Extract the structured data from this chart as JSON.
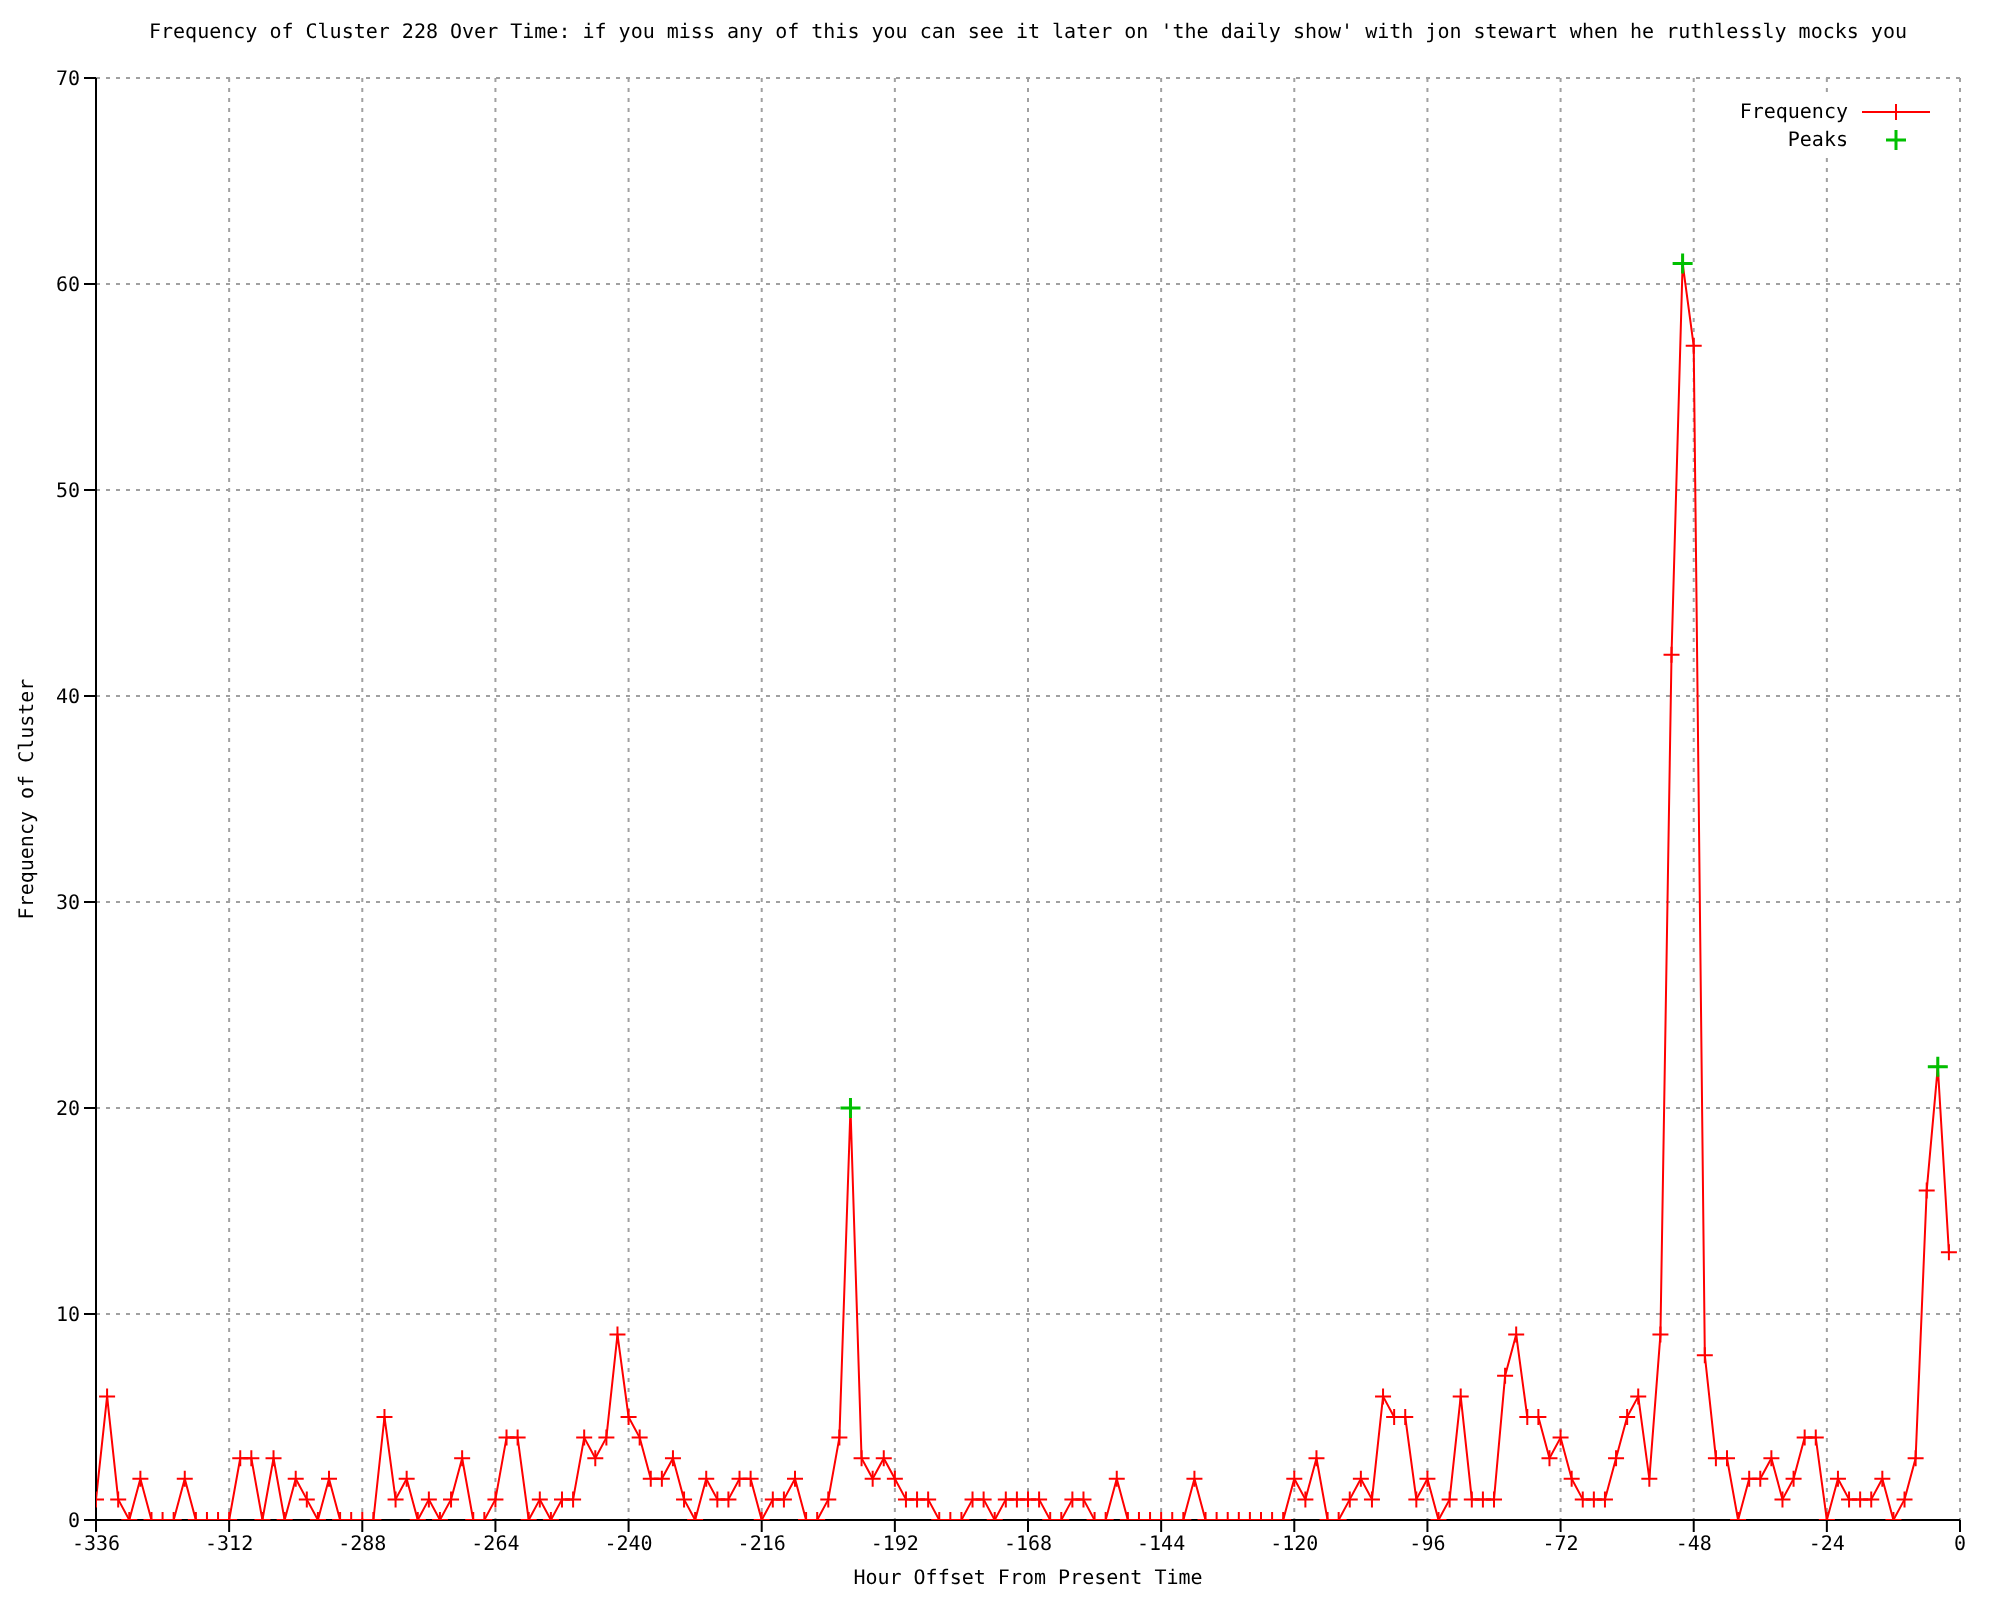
{
  "chart_data": {
    "type": "line",
    "title": "Frequency of Cluster 228 Over Time: if you miss any of this you can see it later on 'the daily show' with jon stewart when he ruthlessly mocks you",
    "xlabel": "Hour Offset From Present Time",
    "ylabel": "Frequency of Cluster",
    "x": [
      -336,
      -334,
      -332,
      -330,
      -328,
      -326,
      -324,
      -322,
      -320,
      -318,
      -316,
      -314,
      -312,
      -310,
      -308,
      -306,
      -304,
      -302,
      -300,
      -298,
      -296,
      -294,
      -292,
      -290,
      -288,
      -286,
      -284,
      -282,
      -280,
      -278,
      -276,
      -274,
      -272,
      -270,
      -268,
      -266,
      -264,
      -262,
      -260,
      -258,
      -256,
      -254,
      -252,
      -250,
      -248,
      -246,
      -244,
      -242,
      -240,
      -238,
      -236,
      -234,
      -232,
      -230,
      -228,
      -226,
      -224,
      -222,
      -220,
      -218,
      -216,
      -214,
      -212,
      -210,
      -208,
      -206,
      -204,
      -202,
      -200,
      -198,
      -196,
      -194,
      -192,
      -190,
      -188,
      -186,
      -184,
      -182,
      -180,
      -178,
      -176,
      -174,
      -172,
      -170,
      -168,
      -166,
      -164,
      -162,
      -160,
      -158,
      -156,
      -154,
      -152,
      -150,
      -148,
      -146,
      -144,
      -142,
      -140,
      -138,
      -136,
      -134,
      -132,
      -130,
      -128,
      -126,
      -124,
      -122,
      -120,
      -118,
      -116,
      -114,
      -112,
      -110,
      -108,
      -106,
      -104,
      -102,
      -100,
      -98,
      -96,
      -94,
      -92,
      -90,
      -88,
      -86,
      -84,
      -82,
      -80,
      -78,
      -76,
      -74,
      -72,
      -70,
      -68,
      -66,
      -64,
      -62,
      -60,
      -58,
      -56,
      -54,
      -52,
      -50,
      -48,
      -46,
      -44,
      -42,
      -40,
      -38,
      -36,
      -34,
      -32,
      -30,
      -28,
      -26,
      -24,
      -22,
      -20,
      -18,
      -16,
      -14,
      -12,
      -10,
      -8,
      -6,
      -4,
      -2
    ],
    "series": [
      {
        "name": "Frequency",
        "color": "#ff0000",
        "marker": "cross",
        "values": [
          1,
          6,
          1,
          0,
          2,
          0,
          0,
          0,
          2,
          0,
          0,
          0,
          0,
          3,
          3,
          0,
          3,
          0,
          2,
          1,
          0,
          2,
          0,
          0,
          0,
          0,
          5,
          1,
          2,
          0,
          1,
          0,
          1,
          3,
          0,
          0,
          1,
          4,
          4,
          0,
          1,
          0,
          1,
          1,
          4,
          3,
          4,
          9,
          5,
          4,
          2,
          2,
          3,
          1,
          0,
          2,
          1,
          1,
          2,
          2,
          0,
          1,
          1,
          2,
          0,
          0,
          1,
          4,
          20,
          3,
          2,
          3,
          2,
          1,
          1,
          1,
          0,
          0,
          0,
          1,
          1,
          0,
          1,
          1,
          1,
          1,
          0,
          0,
          1,
          1,
          0,
          0,
          2,
          0,
          0,
          0,
          0,
          0,
          0,
          2,
          0,
          0,
          0,
          0,
          0,
          0,
          0,
          0,
          2,
          1,
          3,
          0,
          0,
          1,
          2,
          1,
          6,
          5,
          5,
          1,
          2,
          0,
          1,
          6,
          1,
          1,
          1,
          7,
          9,
          5,
          5,
          3,
          4,
          2,
          1,
          1,
          1,
          3,
          5,
          6,
          2,
          9,
          42,
          61,
          57,
          8,
          3,
          3,
          0,
          2,
          2,
          3,
          1,
          2,
          4,
          4,
          0,
          2,
          1,
          1,
          1,
          2,
          0,
          1,
          3,
          16,
          22,
          13
        ]
      },
      {
        "name": "Peaks",
        "type": "scatter",
        "color": "#00c000",
        "marker": "cross",
        "x": [
          -200,
          -50,
          -4
        ],
        "values": [
          20,
          61,
          22
        ]
      }
    ],
    "xlim": [
      -336,
      0
    ],
    "xticks": [
      -336,
      -312,
      -288,
      -264,
      -240,
      -216,
      -192,
      -168,
      -144,
      -120,
      -96,
      -72,
      -48,
      -24,
      0
    ],
    "ylim": [
      0,
      70
    ],
    "yticks": [
      0,
      10,
      20,
      30,
      40,
      50,
      60,
      70
    ],
    "grid": true,
    "legend": "top right"
  }
}
